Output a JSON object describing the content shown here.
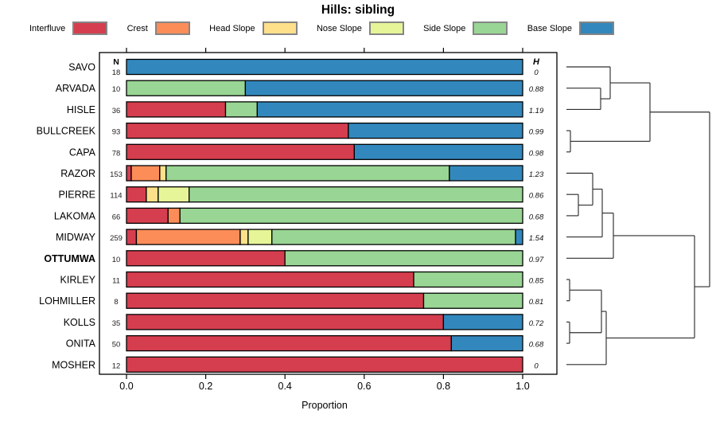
{
  "chart_data": {
    "type": "bar",
    "variant": "horizontal-stacked-proportion-with-dendrogram",
    "title": "Hills: sibling",
    "xlabel": "Proportion",
    "xlim": [
      0,
      1
    ],
    "x_ticks": [
      0,
      0.2,
      0.4,
      0.6,
      0.8,
      1.0
    ],
    "x_tick_labels": [
      "0.0",
      "0.2",
      "0.4",
      "0.6",
      "0.8",
      "1.0"
    ],
    "n_column_header": "N",
    "h_column_header": "H",
    "classes": [
      {
        "label": "Interfluve",
        "color": "#D53E4F"
      },
      {
        "label": "Crest",
        "color": "#FC8D59"
      },
      {
        "label": "Head Slope",
        "color": "#FEE08B"
      },
      {
        "label": "Nose Slope",
        "color": "#E6F598"
      },
      {
        "label": "Side Slope",
        "color": "#99D594"
      },
      {
        "label": "Base Slope",
        "color": "#3288BD"
      }
    ],
    "rows": [
      {
        "name": "SAVO",
        "n": "18",
        "h": "0",
        "bold": false,
        "segments": [
          {
            "c": 5,
            "p": 1.0
          }
        ]
      },
      {
        "name": "ARVADA",
        "n": "10",
        "h": "0.88",
        "bold": false,
        "segments": [
          {
            "c": 4,
            "p": 0.3
          },
          {
            "c": 5,
            "p": 0.7
          }
        ]
      },
      {
        "name": "HISLE",
        "n": "36",
        "h": "1.19",
        "bold": false,
        "segments": [
          {
            "c": 0,
            "p": 0.25
          },
          {
            "c": 4,
            "p": 0.08
          },
          {
            "c": 5,
            "p": 0.67
          }
        ]
      },
      {
        "name": "BULLCREEK",
        "n": "93",
        "h": "0.99",
        "bold": false,
        "segments": [
          {
            "c": 0,
            "p": 0.56
          },
          {
            "c": 5,
            "p": 0.44
          }
        ]
      },
      {
        "name": "CAPA",
        "n": "78",
        "h": "0.98",
        "bold": false,
        "segments": [
          {
            "c": 0,
            "p": 0.575
          },
          {
            "c": 5,
            "p": 0.425
          }
        ]
      },
      {
        "name": "RAZOR",
        "n": "153",
        "h": "1.23",
        "bold": false,
        "segments": [
          {
            "c": 0,
            "p": 0.012
          },
          {
            "c": 1,
            "p": 0.072
          },
          {
            "c": 2,
            "p": 0.016
          },
          {
            "c": 4,
            "p": 0.715
          },
          {
            "c": 5,
            "p": 0.185
          }
        ]
      },
      {
        "name": "PIERRE",
        "n": "114",
        "h": "0.86",
        "bold": false,
        "segments": [
          {
            "c": 0,
            "p": 0.05
          },
          {
            "c": 2,
            "p": 0.03
          },
          {
            "c": 3,
            "p": 0.078
          },
          {
            "c": 4,
            "p": 0.842
          }
        ]
      },
      {
        "name": "LAKOMA",
        "n": "66",
        "h": "0.68",
        "bold": false,
        "segments": [
          {
            "c": 0,
            "p": 0.105
          },
          {
            "c": 1,
            "p": 0.03
          },
          {
            "c": 4,
            "p": 0.865
          }
        ]
      },
      {
        "name": "MIDWAY",
        "n": "259",
        "h": "1.54",
        "bold": false,
        "segments": [
          {
            "c": 0,
            "p": 0.025
          },
          {
            "c": 1,
            "p": 0.262
          },
          {
            "c": 2,
            "p": 0.02
          },
          {
            "c": 3,
            "p": 0.06
          },
          {
            "c": 4,
            "p": 0.615
          },
          {
            "c": 5,
            "p": 0.018
          }
        ]
      },
      {
        "name": "OTTUMWA",
        "n": "10",
        "h": "0.97",
        "bold": true,
        "segments": [
          {
            "c": 0,
            "p": 0.4
          },
          {
            "c": 4,
            "p": 0.6
          }
        ]
      },
      {
        "name": "KIRLEY",
        "n": "11",
        "h": "0.85",
        "bold": false,
        "segments": [
          {
            "c": 0,
            "p": 0.725
          },
          {
            "c": 4,
            "p": 0.275
          }
        ]
      },
      {
        "name": "LOHMILLER",
        "n": "8",
        "h": "0.81",
        "bold": false,
        "segments": [
          {
            "c": 0,
            "p": 0.75
          },
          {
            "c": 4,
            "p": 0.25
          }
        ]
      },
      {
        "name": "KOLLS",
        "n": "35",
        "h": "0.72",
        "bold": false,
        "segments": [
          {
            "c": 0,
            "p": 0.8
          },
          {
            "c": 5,
            "p": 0.2
          }
        ]
      },
      {
        "name": "ONITA",
        "n": "50",
        "h": "0.68",
        "bold": false,
        "segments": [
          {
            "c": 0,
            "p": 0.82
          },
          {
            "c": 5,
            "p": 0.18
          }
        ]
      },
      {
        "name": "MOSHER",
        "n": "12",
        "h": "0",
        "bold": false,
        "segments": [
          {
            "c": 0,
            "p": 1.0
          }
        ]
      }
    ],
    "dendrogram": {
      "note": "segments as [x1,row1,x2,row2]; x in page px, row = leaf index (fractions = cluster connectors)",
      "segments": [
        [
          712,
          0,
          767,
          0
        ],
        [
          712,
          1,
          755,
          1
        ],
        [
          712,
          2,
          755,
          2
        ],
        [
          755,
          1,
          755,
          2
        ],
        [
          755,
          1.5,
          767,
          1.5
        ],
        [
          767,
          0,
          767,
          1.5
        ],
        [
          767,
          0.75,
          817,
          0.75
        ],
        [
          712,
          3,
          717,
          3
        ],
        [
          712,
          4,
          717,
          4
        ],
        [
          717,
          3,
          717,
          4
        ],
        [
          717,
          3.5,
          817,
          3.5
        ],
        [
          817,
          0.75,
          817,
          3.5
        ],
        [
          817,
          2.125,
          892,
          2.125
        ],
        [
          712,
          5,
          745,
          5
        ],
        [
          712,
          6,
          727,
          6
        ],
        [
          712,
          7,
          727,
          7
        ],
        [
          727,
          6,
          727,
          7
        ],
        [
          727,
          6.5,
          745,
          6.5
        ],
        [
          745,
          5,
          745,
          6.5
        ],
        [
          745,
          5.75,
          757,
          5.75
        ],
        [
          712,
          8,
          757,
          8
        ],
        [
          757,
          5.75,
          757,
          8
        ],
        [
          757,
          6.875,
          771,
          6.875
        ],
        [
          712,
          9,
          771,
          9
        ],
        [
          771,
          6.875,
          771,
          9
        ],
        [
          771,
          7.9375,
          873,
          7.9375
        ],
        [
          712,
          10,
          716,
          10
        ],
        [
          712,
          11,
          716,
          11
        ],
        [
          716,
          10,
          716,
          11
        ],
        [
          716,
          10.5,
          756,
          10.5
        ],
        [
          712,
          12,
          716,
          12
        ],
        [
          712,
          13,
          716,
          13
        ],
        [
          716,
          12,
          716,
          13
        ],
        [
          716,
          12.5,
          756,
          12.5
        ],
        [
          756,
          10.5,
          756,
          12.5
        ],
        [
          756,
          11.5,
          762,
          11.5
        ],
        [
          712,
          14,
          762,
          14
        ],
        [
          762,
          11.5,
          762,
          14
        ],
        [
          762,
          12.75,
          873,
          12.75
        ],
        [
          873,
          7.9375,
          873,
          12.75
        ],
        [
          873,
          10.34,
          892,
          10.34
        ],
        [
          892,
          2.125,
          892,
          10.34
        ]
      ]
    }
  }
}
